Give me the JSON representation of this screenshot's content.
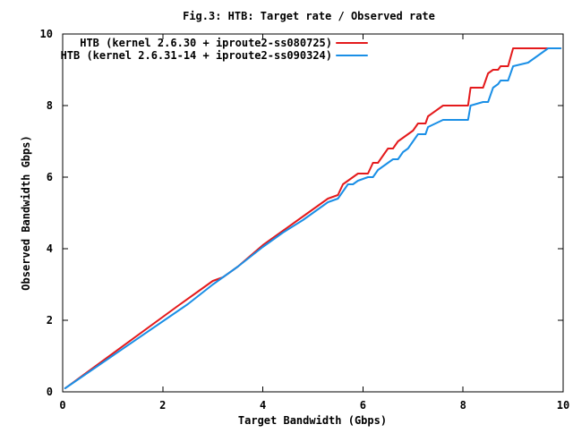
{
  "chart_data": {
    "type": "line",
    "title": "Fig.3: HTB: Target rate / Observed rate",
    "xlabel": "Target Bandwidth (Gbps)",
    "ylabel": "Observed Bandwidth Gbps)",
    "xlim": [
      0,
      10
    ],
    "ylim": [
      0,
      10
    ],
    "xticks": [
      "0",
      "2",
      "4",
      "6",
      "8",
      "10"
    ],
    "yticks": [
      "0",
      "2",
      "4",
      "6",
      "8",
      "10"
    ],
    "grid": false,
    "legend_position": "top-right",
    "series": [
      {
        "name": "HTB (kernel 2.6.30 + iproute2-ss080725)",
        "color": "#e41a1c",
        "x": [
          0.05,
          2.3,
          2.7,
          3.0,
          3.2,
          3.5,
          4.0,
          4.4,
          4.8,
          5.0,
          5.3,
          5.5,
          5.6,
          5.7,
          5.8,
          5.9,
          6.1,
          6.2,
          6.3,
          6.4,
          6.5,
          6.6,
          6.7,
          6.8,
          6.9,
          7.0,
          7.1,
          7.25,
          7.3,
          7.6,
          8.1,
          8.15,
          8.4,
          8.5,
          8.6,
          8.7,
          8.75,
          8.9,
          9.0,
          9.3,
          9.4,
          9.7,
          9.95
        ],
        "y": [
          0.1,
          2.4,
          2.8,
          3.1,
          3.2,
          3.5,
          4.1,
          4.5,
          4.9,
          5.1,
          5.4,
          5.5,
          5.8,
          5.9,
          6.0,
          6.1,
          6.1,
          6.4,
          6.4,
          6.6,
          6.8,
          6.8,
          7.0,
          7.1,
          7.2,
          7.3,
          7.5,
          7.5,
          7.7,
          8.0,
          8.0,
          8.5,
          8.5,
          8.9,
          9.0,
          9.0,
          9.1,
          9.1,
          9.6,
          9.6,
          9.6,
          9.6,
          9.6
        ]
      },
      {
        "name": "HTB (kernel 2.6.31-14 + iproute2-ss090324)",
        "color": "#1a8fe6",
        "x": [
          0.05,
          2.5,
          3.0,
          3.2,
          3.5,
          4.0,
          4.4,
          4.8,
          5.0,
          5.3,
          5.5,
          5.6,
          5.7,
          5.8,
          5.9,
          6.1,
          6.2,
          6.3,
          6.4,
          6.5,
          6.6,
          6.7,
          6.8,
          6.9,
          7.0,
          7.1,
          7.25,
          7.3,
          7.6,
          8.1,
          8.15,
          8.4,
          8.5,
          8.6,
          8.7,
          8.75,
          8.9,
          9.0,
          9.3,
          9.4,
          9.7,
          9.95
        ],
        "y": [
          0.1,
          2.45,
          3.0,
          3.2,
          3.5,
          4.05,
          4.45,
          4.8,
          5.0,
          5.3,
          5.4,
          5.6,
          5.8,
          5.8,
          5.9,
          6.0,
          6.0,
          6.2,
          6.3,
          6.4,
          6.5,
          6.5,
          6.7,
          6.8,
          7.0,
          7.2,
          7.2,
          7.4,
          7.6,
          7.6,
          8.0,
          8.1,
          8.1,
          8.5,
          8.6,
          8.7,
          8.7,
          9.1,
          9.2,
          9.3,
          9.6,
          9.6
        ]
      }
    ]
  }
}
